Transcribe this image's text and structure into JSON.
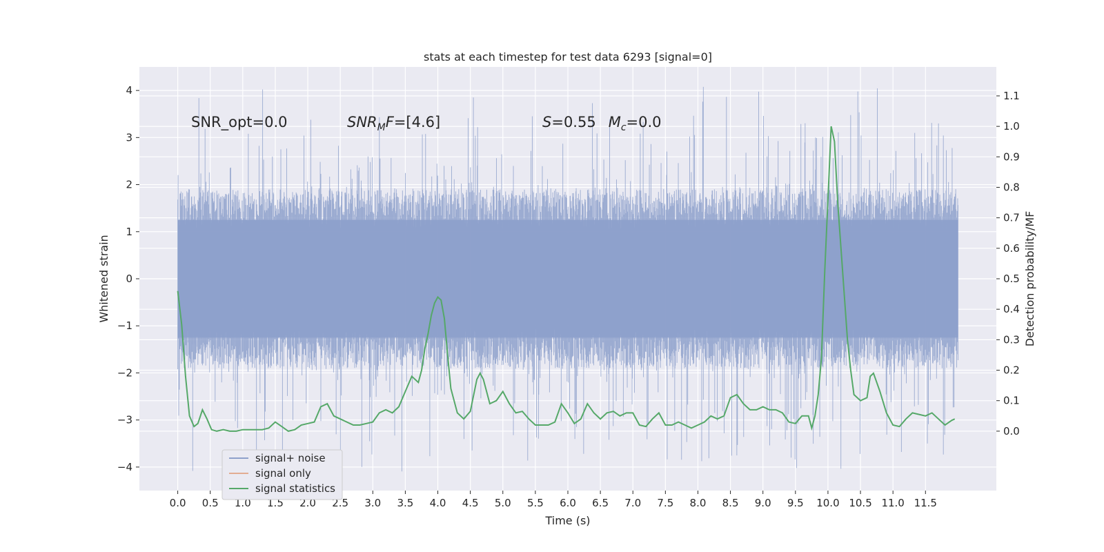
{
  "chart_data": {
    "type": "line",
    "title": "stats at each timestep for test data 6293 [signal=0]",
    "xlabel": "Time (s)",
    "ylabel_left": "Whitened strain",
    "ylabel_right": "Detection probability/MF",
    "xlim": [
      -0.59,
      12.59
    ],
    "ylim_left": [
      -4.5,
      4.5
    ],
    "ylim_right": [
      -0.195,
      1.195
    ],
    "x_ticks": [
      "0.0",
      "0.5",
      "1.0",
      "1.5",
      "2.0",
      "2.5",
      "3.0",
      "3.5",
      "4.0",
      "4.5",
      "5.0",
      "5.5",
      "6.0",
      "6.5",
      "7.0",
      "7.5",
      "8.0",
      "8.5",
      "9.0",
      "9.5",
      "10.0",
      "10.5",
      "11.0",
      "11.5"
    ],
    "y_ticks_left": [
      "4",
      "3",
      "2",
      "1",
      "0",
      "−1",
      "−2",
      "−3",
      "−4"
    ],
    "y_ticks_right": [
      "1.1",
      "1.0",
      "0.9",
      "0.8",
      "0.7",
      "0.6",
      "0.5",
      "0.4",
      "0.3",
      "0.2",
      "0.1",
      "0.0"
    ],
    "grid": true,
    "legend_position": "lower-left",
    "annotations": {
      "snr_opt": "SNR_opt=0.0",
      "snr_mf_prefix": "SNR",
      "snr_mf_sub": "M",
      "snr_mf_mid": "F",
      "snr_mf_value": "=[4.6]",
      "s_prefix": "S",
      "s_value": "=0.55",
      "mc_prefix": "M",
      "mc_sub": "c",
      "mc_value": "=0.0"
    },
    "series": [
      {
        "name": "signal+ noise",
        "color": "#8da0cb",
        "noise_profile": {
          "x": [
            0.0,
            1.0,
            2.0,
            3.0,
            4.0,
            5.0,
            6.0,
            7.0,
            8.0,
            9.0,
            10.0,
            11.0,
            12.0
          ],
          "core_upper": [
            1.9,
            1.9,
            1.9,
            1.9,
            1.9,
            1.9,
            1.9,
            1.9,
            1.9,
            1.9,
            1.9,
            1.9,
            1.9
          ],
          "core_lower": [
            -1.9,
            -1.9,
            -1.9,
            -1.9,
            -1.9,
            -1.9,
            -1.9,
            -1.9,
            -1.9,
            -1.9,
            -1.9,
            -1.9,
            -1.9
          ],
          "max": 4.1,
          "min": -4.1
        }
      },
      {
        "name": "signal only",
        "color": "#dd8452",
        "x": [],
        "y": []
      },
      {
        "name": "signal statistics",
        "color": "#55a868",
        "x": [
          0.0,
          0.06,
          0.12,
          0.18,
          0.25,
          0.31,
          0.38,
          0.45,
          0.52,
          0.6,
          0.7,
          0.8,
          0.9,
          1.0,
          1.1,
          1.2,
          1.3,
          1.4,
          1.5,
          1.6,
          1.7,
          1.8,
          1.9,
          2.0,
          2.1,
          2.2,
          2.3,
          2.4,
          2.5,
          2.6,
          2.7,
          2.8,
          2.9,
          3.0,
          3.1,
          3.2,
          3.3,
          3.4,
          3.5,
          3.6,
          3.7,
          3.75,
          3.8,
          3.85,
          3.9,
          3.95,
          4.0,
          4.05,
          4.1,
          4.15,
          4.2,
          4.3,
          4.4,
          4.5,
          4.6,
          4.65,
          4.7,
          4.8,
          4.9,
          5.0,
          5.1,
          5.2,
          5.3,
          5.4,
          5.5,
          5.6,
          5.7,
          5.8,
          5.9,
          6.0,
          6.1,
          6.2,
          6.3,
          6.4,
          6.5,
          6.6,
          6.7,
          6.8,
          6.9,
          7.0,
          7.1,
          7.2,
          7.3,
          7.4,
          7.5,
          7.6,
          7.7,
          7.8,
          7.9,
          8.0,
          8.1,
          8.2,
          8.3,
          8.4,
          8.5,
          8.6,
          8.7,
          8.8,
          8.9,
          9.0,
          9.1,
          9.2,
          9.3,
          9.4,
          9.5,
          9.6,
          9.7,
          9.75,
          9.8,
          9.85,
          9.9,
          9.95,
          10.0,
          10.05,
          10.1,
          10.15,
          10.2,
          10.25,
          10.3,
          10.35,
          10.4,
          10.5,
          10.6,
          10.65,
          10.7,
          10.8,
          10.9,
          11.0,
          11.1,
          11.2,
          11.3,
          11.4,
          11.5,
          11.6,
          11.7,
          11.8,
          11.9,
          11.95
        ],
        "y": [
          0.46,
          0.35,
          0.18,
          0.05,
          0.015,
          0.025,
          0.07,
          0.04,
          0.005,
          0.0,
          0.005,
          0.0,
          0.0,
          0.005,
          0.005,
          0.005,
          0.005,
          0.01,
          0.03,
          0.015,
          0.0,
          0.005,
          0.02,
          0.025,
          0.03,
          0.08,
          0.09,
          0.05,
          0.04,
          0.03,
          0.02,
          0.02,
          0.025,
          0.03,
          0.06,
          0.07,
          0.06,
          0.08,
          0.13,
          0.18,
          0.16,
          0.2,
          0.27,
          0.32,
          0.38,
          0.42,
          0.44,
          0.43,
          0.37,
          0.25,
          0.14,
          0.06,
          0.04,
          0.065,
          0.17,
          0.19,
          0.17,
          0.09,
          0.1,
          0.13,
          0.09,
          0.06,
          0.065,
          0.04,
          0.02,
          0.02,
          0.02,
          0.03,
          0.09,
          0.06,
          0.025,
          0.04,
          0.09,
          0.06,
          0.04,
          0.06,
          0.065,
          0.05,
          0.06,
          0.06,
          0.02,
          0.015,
          0.04,
          0.06,
          0.02,
          0.02,
          0.03,
          0.02,
          0.01,
          0.02,
          0.03,
          0.05,
          0.04,
          0.05,
          0.11,
          0.12,
          0.09,
          0.07,
          0.07,
          0.08,
          0.07,
          0.07,
          0.06,
          0.03,
          0.025,
          0.05,
          0.05,
          0.01,
          0.05,
          0.12,
          0.24,
          0.52,
          0.76,
          1.0,
          0.95,
          0.75,
          0.6,
          0.45,
          0.3,
          0.2,
          0.12,
          0.1,
          0.11,
          0.18,
          0.19,
          0.13,
          0.06,
          0.02,
          0.015,
          0.04,
          0.06,
          0.055,
          0.05,
          0.06,
          0.04,
          0.02,
          0.035,
          0.04
        ]
      }
    ]
  }
}
